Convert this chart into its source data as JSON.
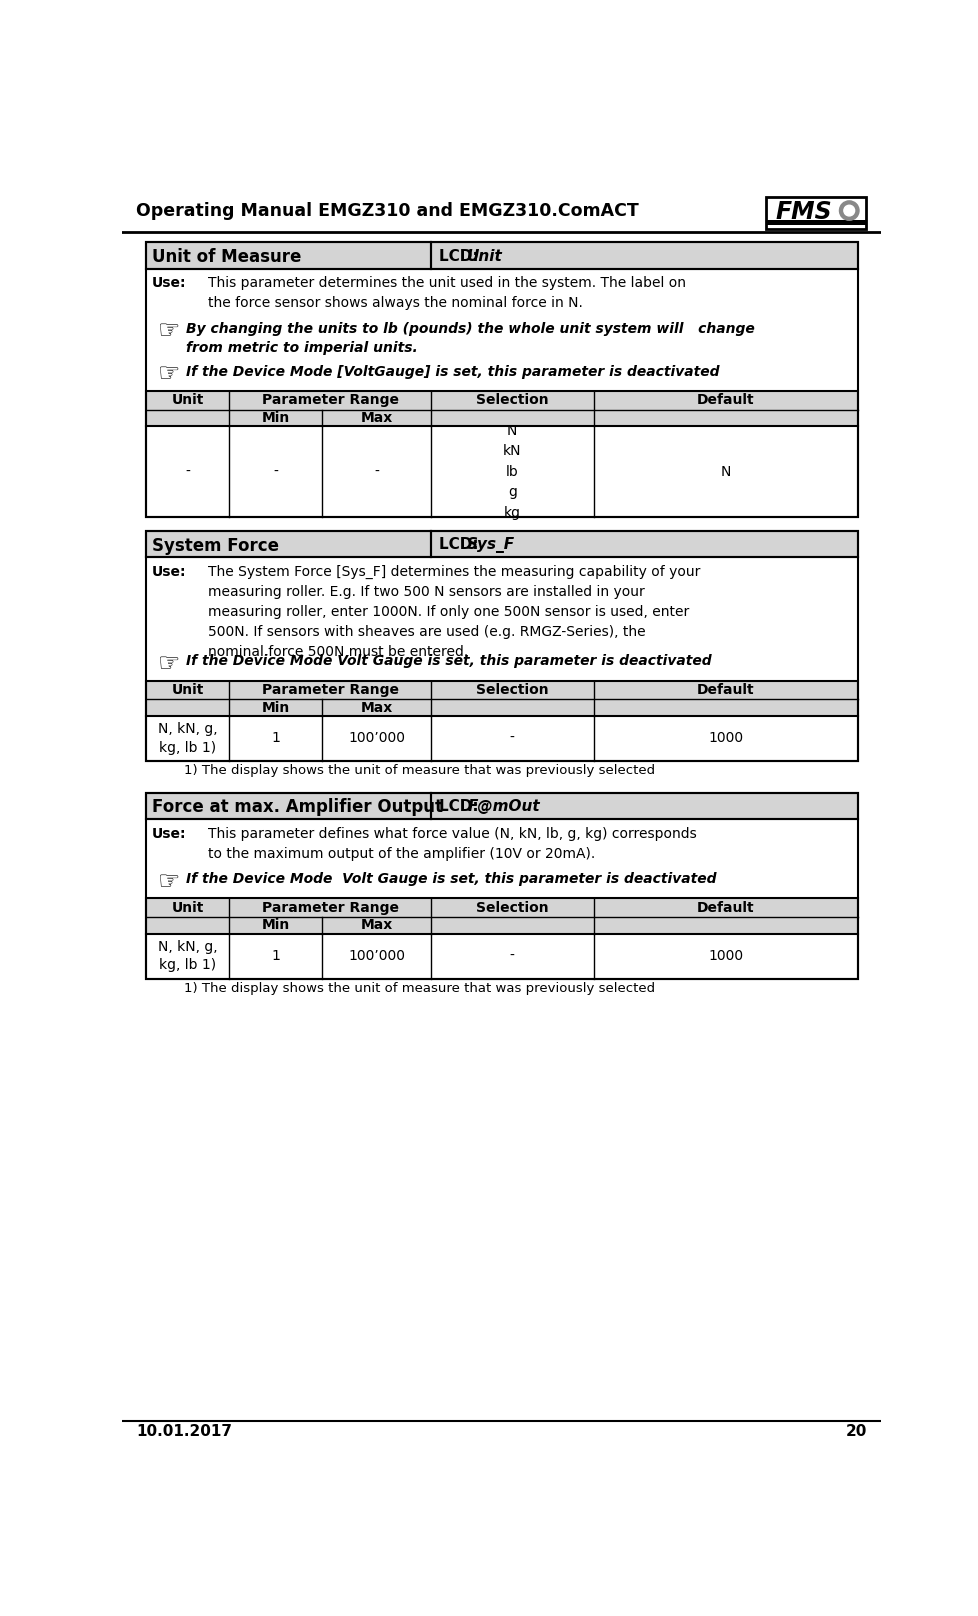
{
  "header_title": "Operating Manual EMGZ310 and EMGZ310.ComACT",
  "footer_date": "10.01.2017",
  "footer_page": "20",
  "bg_color": "#ffffff",
  "sections": [
    {
      "title": "Unit of Measure",
      "lcd_label": "LCD: ",
      "lcd_value": "Unit",
      "use_label": "Use:",
      "use_text": "This parameter determines the unit used in the system. The label on\nthe force sensor shows always the nominal force in N.",
      "notes": [
        {
          "text": "By changing the units to lb (pounds) the whole unit system will   change\nfrom metric to imperial units.",
          "bold_italic": true
        },
        {
          "text": "If the Device Mode [VoltGauge] is set, this parameter is deactivated",
          "bold_italic": true
        }
      ],
      "table": {
        "unit_col": "Unit",
        "param_range": "Parameter Range",
        "min_label": "Min",
        "max_label": "Max",
        "selection_label": "Selection",
        "default_label": "Default",
        "rows": [
          {
            "unit": "-",
            "min": "-",
            "max": "-",
            "selection": "N\nkN\nlb\ng\nkg",
            "default": "N"
          }
        ],
        "footnote": ""
      }
    },
    {
      "title": "System Force",
      "lcd_label": "LCD: ",
      "lcd_value": "Sys_F",
      "use_label": "Use:",
      "use_text": "The System Force [Sys_F] determines the measuring capability of your\nmeasuring roller. E.g. If two 500 N sensors are installed in your\nmeasuring roller, enter 1000N. If only one 500N sensor is used, enter\n500N. If sensors with sheaves are used (e.g. RMGZ-Series), the\nnominal force 500N must be entered.",
      "notes": [
        {
          "text": "If the Device Mode Volt Gauge is set, this parameter is deactivated",
          "bold_italic": true
        }
      ],
      "table": {
        "unit_col": "Unit",
        "param_range": "Parameter Range",
        "min_label": "Min",
        "max_label": "Max",
        "selection_label": "Selection",
        "default_label": "Default",
        "rows": [
          {
            "unit": "N, kN, g,\nkg, lb 1)",
            "min": "1",
            "max": "100’000",
            "selection": "-",
            "default": "1000"
          }
        ],
        "footnote": "1) The display shows the unit of measure that was previously selected"
      }
    },
    {
      "title": "Force at max. Amplifier Output",
      "lcd_label": "LCD: ",
      "lcd_value": "F@mOut",
      "use_label": "Use:",
      "use_text": "This parameter defines what force value (N, kN, lb, g, kg) corresponds\nto the maximum output of the amplifier (10V or 20mA).",
      "notes": [
        {
          "text": "If the Device Mode  Volt Gauge is set, this parameter is deactivated",
          "bold_italic": true
        }
      ],
      "table": {
        "unit_col": "Unit",
        "param_range": "Parameter Range",
        "min_label": "Min",
        "max_label": "Max",
        "selection_label": "Selection",
        "default_label": "Default",
        "rows": [
          {
            "unit": "N, kN, g,\nkg, lb 1)",
            "min": "1",
            "max": "100’000",
            "selection": "-",
            "default": "1000"
          }
        ],
        "footnote": "1) The display shows the unit of measure that was previously selected"
      }
    }
  ]
}
